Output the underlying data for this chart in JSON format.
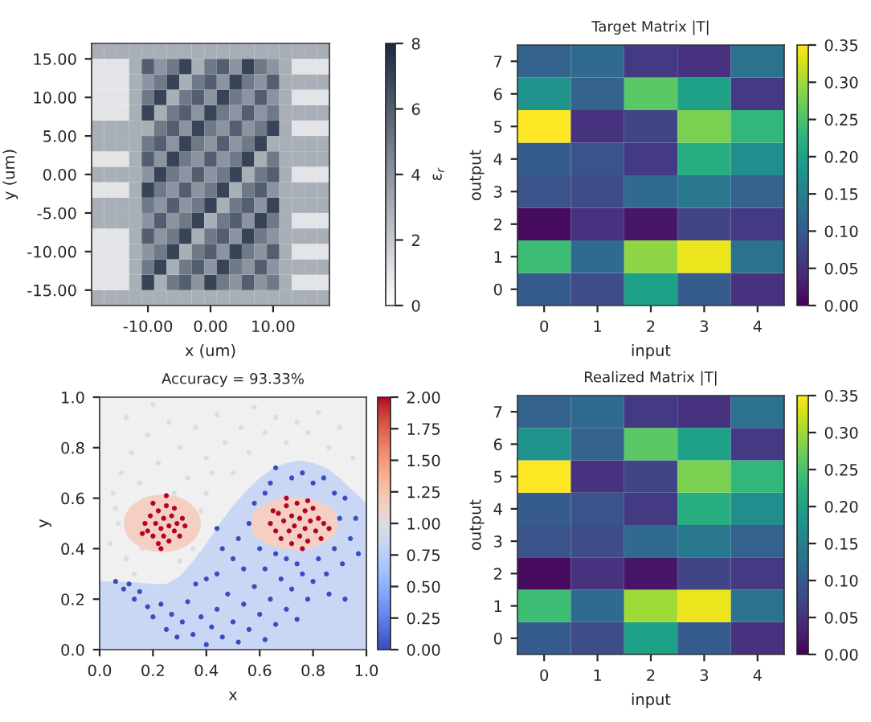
{
  "chart_data": [
    {
      "type": "heatmap",
      "xlabel": "x (um)",
      "ylabel": "y (um)",
      "clabel": "ε$_{r}$",
      "xlim": [
        -19,
        19
      ],
      "ylim": [
        -17,
        17
      ],
      "cells": [
        [
          3,
          3,
          3,
          3,
          3,
          3,
          3,
          3,
          3,
          3,
          3,
          3,
          3,
          3,
          3,
          3,
          3,
          3,
          3
        ],
        [
          1,
          1,
          1,
          3,
          6,
          4,
          5,
          7,
          3,
          5,
          6,
          4,
          7,
          5,
          4,
          3,
          1,
          1,
          1
        ],
        [
          1,
          1,
          1,
          3,
          4,
          5,
          7,
          3,
          5,
          6,
          4,
          7,
          5,
          4,
          6,
          3,
          3,
          3,
          3
        ],
        [
          1,
          1,
          1,
          3,
          5,
          7,
          3,
          5,
          6,
          4,
          7,
          5,
          4,
          6,
          4,
          3,
          1,
          1,
          1
        ],
        [
          1,
          1,
          1,
          3,
          7,
          3,
          5,
          6,
          4,
          7,
          5,
          4,
          6,
          4,
          5,
          3,
          3,
          3,
          3
        ],
        [
          3,
          3,
          3,
          3,
          3,
          5,
          6,
          4,
          7,
          5,
          4,
          6,
          4,
          5,
          7,
          3,
          1,
          1,
          1
        ],
        [
          3,
          3,
          3,
          3,
          5,
          6,
          4,
          7,
          5,
          4,
          6,
          4,
          5,
          7,
          3,
          3,
          3,
          3,
          3
        ],
        [
          1,
          1,
          1,
          3,
          6,
          4,
          7,
          5,
          4,
          6,
          4,
          5,
          7,
          3,
          5,
          3,
          3,
          3,
          3
        ],
        [
          3,
          3,
          3,
          3,
          4,
          7,
          5,
          4,
          6,
          4,
          5,
          7,
          3,
          5,
          6,
          3,
          1,
          1,
          1
        ],
        [
          1,
          1,
          1,
          3,
          7,
          5,
          4,
          6,
          4,
          5,
          7,
          3,
          5,
          6,
          4,
          3,
          3,
          3,
          3
        ],
        [
          3,
          3,
          3,
          3,
          5,
          4,
          6,
          4,
          5,
          7,
          3,
          5,
          6,
          4,
          7,
          3,
          3,
          3,
          3
        ],
        [
          3,
          3,
          3,
          3,
          4,
          6,
          4,
          5,
          7,
          3,
          5,
          6,
          4,
          7,
          5,
          3,
          1,
          1,
          1
        ],
        [
          1,
          1,
          1,
          3,
          6,
          4,
          5,
          7,
          3,
          5,
          6,
          4,
          7,
          5,
          4,
          3,
          3,
          3,
          3
        ],
        [
          1,
          1,
          1,
          3,
          4,
          5,
          7,
          3,
          5,
          6,
          4,
          7,
          5,
          4,
          6,
          3,
          1,
          1,
          1
        ],
        [
          1,
          1,
          1,
          3,
          5,
          7,
          3,
          5,
          6,
          4,
          7,
          5,
          4,
          6,
          4,
          3,
          3,
          3,
          3
        ],
        [
          1,
          1,
          1,
          3,
          7,
          3,
          5,
          6,
          4,
          7,
          5,
          4,
          6,
          4,
          5,
          3,
          1,
          1,
          1
        ],
        [
          3,
          3,
          3,
          3,
          3,
          3,
          3,
          3,
          3,
          3,
          3,
          3,
          3,
          3,
          3,
          3,
          3,
          3,
          3
        ]
      ],
      "xticks": [
        {
          "value": -10,
          "label": "-10.00"
        },
        {
          "value": 0,
          "label": "0.00"
        },
        {
          "value": 10,
          "label": "10.00"
        }
      ],
      "yticks": [
        {
          "value": -15,
          "label": "-15.00"
        },
        {
          "value": -10,
          "label": "-10.00"
        },
        {
          "value": -5,
          "label": "-5.00"
        },
        {
          "value": 0,
          "label": "0.00"
        },
        {
          "value": 5,
          "label": "5.00"
        },
        {
          "value": 10,
          "label": "10.00"
        },
        {
          "value": 15,
          "label": "15.00"
        }
      ],
      "clim": [
        0,
        8
      ],
      "cticks": [
        0,
        2,
        4,
        6,
        8
      ]
    },
    {
      "type": "heatmap",
      "title": "Target Matrix |T|",
      "xlabel": "input",
      "ylabel": "output",
      "categories": [
        "0",
        "1",
        "2",
        "3",
        "4"
      ],
      "y_categories": [
        "7",
        "6",
        "5",
        "4",
        "3",
        "2",
        "1",
        "0"
      ],
      "cells": [
        [
          0.11,
          0.12,
          0.06,
          0.05,
          0.13
        ],
        [
          0.18,
          0.11,
          0.26,
          0.2,
          0.06
        ],
        [
          0.35,
          0.05,
          0.07,
          0.28,
          0.23
        ],
        [
          0.1,
          0.09,
          0.06,
          0.22,
          0.17
        ],
        [
          0.09,
          0.08,
          0.12,
          0.14,
          0.11
        ],
        [
          0.01,
          0.05,
          0.02,
          0.07,
          0.06
        ],
        [
          0.24,
          0.12,
          0.29,
          0.34,
          0.13
        ],
        [
          0.1,
          0.08,
          0.2,
          0.1,
          0.05
        ]
      ],
      "clim": [
        0,
        0.35
      ],
      "cticks": [
        {
          "value": 0,
          "label": "0.00"
        },
        {
          "value": 0.05,
          "label": "0.05"
        },
        {
          "value": 0.1,
          "label": "0.10"
        },
        {
          "value": 0.15,
          "label": "0.15"
        },
        {
          "value": 0.2,
          "label": "0.20"
        },
        {
          "value": 0.25,
          "label": "0.25"
        },
        {
          "value": 0.3,
          "label": "0.30"
        },
        {
          "value": 0.35,
          "label": "0.35"
        }
      ]
    },
    {
      "type": "scatter",
      "title": "Accuracy = 93.33%",
      "xlabel": "x",
      "ylabel": "y",
      "xlim": [
        0,
        1
      ],
      "ylim": [
        0,
        1
      ],
      "xticks": [
        {
          "value": 0,
          "label": "0.0"
        },
        {
          "value": 0.2,
          "label": "0.2"
        },
        {
          "value": 0.4,
          "label": "0.4"
        },
        {
          "value": 0.6,
          "label": "0.6"
        },
        {
          "value": 0.8,
          "label": "0.8"
        },
        {
          "value": 1,
          "label": "1.0"
        }
      ],
      "yticks": [
        {
          "value": 0,
          "label": "0.0"
        },
        {
          "value": 0.2,
          "label": "0.2"
        },
        {
          "value": 0.4,
          "label": "0.4"
        },
        {
          "value": 0.6,
          "label": "0.6"
        },
        {
          "value": 0.8,
          "label": "0.8"
        },
        {
          "value": 1,
          "label": "1.0"
        }
      ],
      "clim": [
        0,
        2
      ],
      "cticks": [
        {
          "value": 0,
          "label": "0.00"
        },
        {
          "value": 0.25,
          "label": "0.25"
        },
        {
          "value": 0.5,
          "label": "0.50"
        },
        {
          "value": 0.75,
          "label": "0.75"
        },
        {
          "value": 1,
          "label": "1.00"
        },
        {
          "value": 1.25,
          "label": "1.25"
        },
        {
          "value": 1.5,
          "label": "1.50"
        },
        {
          "value": 1.75,
          "label": "1.75"
        },
        {
          "value": 2,
          "label": "2.00"
        }
      ],
      "series": [
        {
          "type": "area",
          "color": "#c9d7f5",
          "x": [
            0,
            0.1,
            0.2,
            0.25,
            0.3,
            0.35,
            0.4,
            0.45,
            0.5,
            0.55,
            0.6,
            0.65,
            0.7,
            0.75,
            0.8,
            0.85,
            0.9,
            0.95,
            1.0
          ],
          "values": [
            0.27,
            0.27,
            0.26,
            0.26,
            0.29,
            0.35,
            0.42,
            0.5,
            0.57,
            0.63,
            0.68,
            0.72,
            0.74,
            0.75,
            0.74,
            0.72,
            0.68,
            0.63,
            0.58
          ]
        },
        {
          "x": [
            0.05,
            0.08,
            0.12,
            0.15,
            0.18,
            0.22,
            0.26,
            0.3,
            0.33,
            0.36,
            0.4,
            0.44,
            0.47,
            0.5,
            0.53,
            0.56,
            0.58,
            0.62,
            0.66,
            0.7,
            0.74,
            0.78,
            0.82,
            0.86,
            0.9,
            0.95,
            0.04,
            0.07,
            0.1,
            0.13,
            0.06,
            0.38,
            0.4,
            0.35,
            0.3,
            0.42,
            0.2,
            0.1,
            0.28,
            0.16
          ],
          "values": [
            0.62,
            0.7,
            0.78,
            0.66,
            0.85,
            0.74,
            0.9,
            0.8,
            0.68,
            0.88,
            0.76,
            0.93,
            0.82,
            0.7,
            0.88,
            0.78,
            0.96,
            0.86,
            0.92,
            0.82,
            0.9,
            0.86,
            0.94,
            0.8,
            0.88,
            0.76,
            0.42,
            0.5,
            0.36,
            0.3,
            0.56,
            0.55,
            0.62,
            0.4,
            0.35,
            0.7,
            0.97,
            0.92,
            0.62,
            0.4
          ],
          "cvalues": [
            1,
            1,
            1,
            1,
            1,
            1,
            1,
            1,
            1,
            1,
            1,
            1,
            1,
            1,
            1,
            1,
            1,
            1,
            1,
            1,
            1,
            1,
            1,
            1,
            1,
            1,
            1,
            1,
            1,
            1,
            1,
            1,
            1,
            1,
            1,
            1,
            1,
            1,
            1,
            1
          ]
        },
        {
          "x": [
            0.17,
            0.18,
            0.19,
            0.2,
            0.21,
            0.22,
            0.22,
            0.23,
            0.24,
            0.24,
            0.25,
            0.26,
            0.26,
            0.27,
            0.28,
            0.29,
            0.3,
            0.31,
            0.2,
            0.28,
            0.23,
            0.16,
            0.32,
            0.25,
            0.64,
            0.66,
            0.67,
            0.68,
            0.69,
            0.7,
            0.71,
            0.72,
            0.72,
            0.73,
            0.74,
            0.75,
            0.75,
            0.76,
            0.77,
            0.77,
            0.78,
            0.79,
            0.8,
            0.81,
            0.82,
            0.83,
            0.84,
            0.7,
            0.78,
            0.65,
            0.86
          ],
          "values": [
            0.5,
            0.47,
            0.53,
            0.45,
            0.5,
            0.55,
            0.42,
            0.48,
            0.52,
            0.45,
            0.57,
            0.49,
            0.43,
            0.53,
            0.47,
            0.5,
            0.45,
            0.52,
            0.58,
            0.56,
            0.4,
            0.46,
            0.49,
            0.61,
            0.5,
            0.47,
            0.54,
            0.44,
            0.51,
            0.57,
            0.47,
            0.42,
            0.53,
            0.49,
            0.58,
            0.45,
            0.52,
            0.4,
            0.55,
            0.48,
            0.43,
            0.51,
            0.56,
            0.47,
            0.52,
            0.44,
            0.5,
            0.6,
            0.59,
            0.55,
            0.48
          ],
          "cvalues": [
            2,
            2,
            2,
            2,
            2,
            2,
            2,
            2,
            2,
            2,
            2,
            2,
            2,
            2,
            2,
            2,
            2,
            2,
            2,
            2,
            2,
            2,
            2,
            2,
            2,
            2,
            2,
            2,
            2,
            2,
            2,
            2,
            2,
            2,
            2,
            2,
            2,
            2,
            2,
            2,
            2,
            2,
            2,
            2,
            2,
            2,
            2,
            2,
            2,
            2,
            2
          ]
        },
        {
          "x": [
            0.06,
            0.09,
            0.11,
            0.13,
            0.15,
            0.18,
            0.2,
            0.23,
            0.25,
            0.27,
            0.29,
            0.31,
            0.33,
            0.35,
            0.38,
            0.4,
            0.42,
            0.44,
            0.46,
            0.48,
            0.5,
            0.52,
            0.54,
            0.56,
            0.58,
            0.6,
            0.62,
            0.64,
            0.66,
            0.68,
            0.7,
            0.72,
            0.74,
            0.76,
            0.78,
            0.8,
            0.82,
            0.85,
            0.88,
            0.91,
            0.94,
            0.97,
            0.96,
            0.92,
            0.9,
            0.88,
            0.84,
            0.8,
            0.76,
            0.72,
            0.66,
            0.64,
            0.62,
            0.58,
            0.56,
            0.52,
            0.5,
            0.46,
            0.44,
            0.4,
            0.36,
            0.54,
            0.6,
            0.62,
            0.66,
            0.7,
            0.74,
            0.92,
            0.86,
            0.44
          ],
          "values": [
            0.27,
            0.24,
            0.26,
            0.2,
            0.23,
            0.17,
            0.13,
            0.18,
            0.08,
            0.14,
            0.05,
            0.11,
            0.19,
            0.06,
            0.13,
            0.02,
            0.09,
            0.16,
            0.05,
            0.22,
            0.11,
            0.03,
            0.18,
            0.08,
            0.25,
            0.14,
            0.04,
            0.2,
            0.1,
            0.28,
            0.16,
            0.24,
            0.12,
            0.3,
            0.2,
            0.27,
            0.36,
            0.3,
            0.4,
            0.34,
            0.44,
            0.38,
            0.52,
            0.6,
            0.52,
            0.62,
            0.68,
            0.66,
            0.7,
            0.68,
            0.72,
            0.66,
            0.62,
            0.58,
            0.5,
            0.44,
            0.36,
            0.4,
            0.3,
            0.28,
            0.26,
            0.32,
            0.4,
            0.32,
            0.38,
            0.36,
            0.34,
            0.2,
            0.22,
            0.48
          ],
          "cvalues": [
            0,
            0,
            0,
            0,
            0,
            0,
            0,
            0,
            0,
            0,
            0,
            0,
            0,
            0,
            0,
            0,
            0,
            0,
            0,
            0,
            0,
            0,
            0,
            0,
            0,
            0,
            0,
            0,
            0,
            0,
            0,
            0,
            0,
            0,
            0,
            0,
            0,
            0,
            0,
            0,
            0,
            0,
            0,
            0,
            0,
            0,
            0,
            0,
            0,
            0,
            0,
            0,
            0,
            0,
            0,
            0,
            0,
            0,
            0,
            0,
            0,
            0,
            0,
            0,
            0,
            0,
            0,
            0,
            0,
            0
          ]
        }
      ]
    },
    {
      "type": "heatmap",
      "title": "Realized Matrix |T|",
      "xlabel": "input",
      "ylabel": "output",
      "categories": [
        "0",
        "1",
        "2",
        "3",
        "4"
      ],
      "y_categories": [
        "7",
        "6",
        "5",
        "4",
        "3",
        "2",
        "1",
        "0"
      ],
      "cells": [
        [
          0.11,
          0.12,
          0.06,
          0.05,
          0.13
        ],
        [
          0.18,
          0.11,
          0.26,
          0.2,
          0.06
        ],
        [
          0.35,
          0.05,
          0.07,
          0.28,
          0.23
        ],
        [
          0.1,
          0.09,
          0.06,
          0.22,
          0.17
        ],
        [
          0.09,
          0.08,
          0.12,
          0.14,
          0.11
        ],
        [
          0.01,
          0.05,
          0.02,
          0.07,
          0.06
        ],
        [
          0.24,
          0.12,
          0.3,
          0.34,
          0.13
        ],
        [
          0.1,
          0.08,
          0.2,
          0.1,
          0.05
        ]
      ],
      "clim": [
        0,
        0.35
      ],
      "cticks": [
        {
          "value": 0,
          "label": "0.00"
        },
        {
          "value": 0.05,
          "label": "0.05"
        },
        {
          "value": 0.1,
          "label": "0.10"
        },
        {
          "value": 0.15,
          "label": "0.15"
        },
        {
          "value": 0.2,
          "label": "0.20"
        },
        {
          "value": 0.25,
          "label": "0.25"
        },
        {
          "value": 0.3,
          "label": "0.30"
        },
        {
          "value": 0.35,
          "label": "0.35"
        }
      ]
    }
  ]
}
